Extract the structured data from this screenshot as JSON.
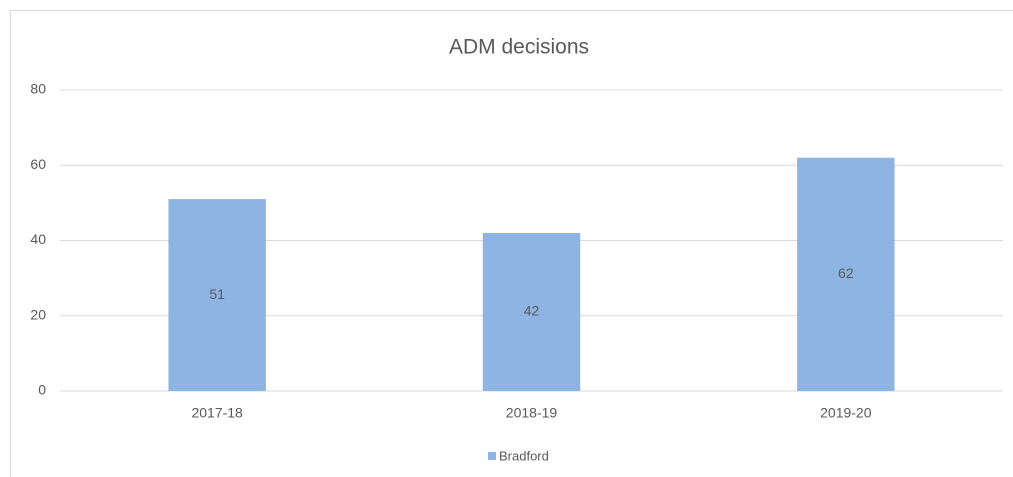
{
  "chart_data": {
    "type": "bar",
    "title": "ADM decisions",
    "categories": [
      "2017-18",
      "2018-19",
      "2019-20"
    ],
    "series": [
      {
        "name": "Bradford",
        "color": "#8eb4e3",
        "values": [
          51,
          42,
          62
        ]
      }
    ],
    "ylim": [
      0,
      80
    ],
    "yticks": [
      0,
      20,
      40,
      60,
      80
    ],
    "grid": true,
    "data_labels": true,
    "legend": "bottom"
  }
}
